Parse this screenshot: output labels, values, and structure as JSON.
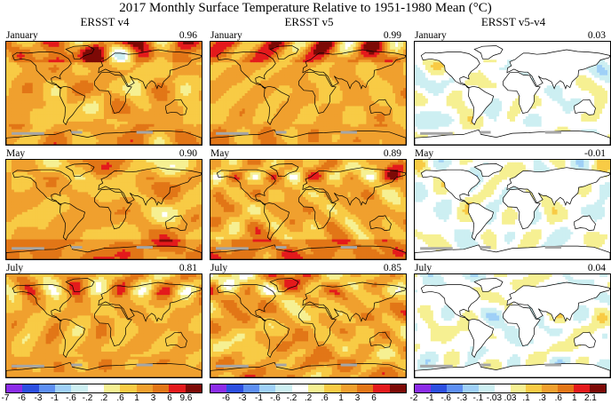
{
  "title": "2017 Monthly Surface Temperature Relative to 1951-1980 Mean (°C)",
  "columns": [
    {
      "header": "ERSST v4",
      "kind": "abs"
    },
    {
      "header": "ERSST v5",
      "kind": "abs"
    },
    {
      "header": "ERSST v5-v4",
      "kind": "diff"
    }
  ],
  "rows": [
    {
      "month": "January",
      "means": [
        "0.96",
        "0.99",
        "0.03"
      ]
    },
    {
      "month": "May",
      "means": [
        "0.90",
        "0.89",
        "-0.01"
      ]
    },
    {
      "month": "July",
      "means": [
        "0.81",
        "0.85",
        "0.04"
      ]
    }
  ],
  "colorbars": [
    {
      "ticks": [
        "-7",
        "-6",
        "-3",
        "-1",
        "-.6",
        "-.2",
        ".2",
        ".6",
        "1",
        "3",
        "6",
        "9.6"
      ],
      "colors": [
        "#8c2ce8",
        "#2c4fe0",
        "#5d8ff2",
        "#9fd0f7",
        "#cdeff2",
        "#ffffff",
        "#f6f092",
        "#f8cb45",
        "#f0a02e",
        "#e27617",
        "#e41a1c",
        "#7d0a06"
      ]
    },
    {
      "ticks": [
        "-6",
        "-3",
        "-1",
        "-.6",
        "-.2",
        ".2",
        ".6",
        "1",
        "3",
        "6"
      ],
      "colors": [
        "#8c2ce8",
        "#2c4fe0",
        "#5d8ff2",
        "#9fd0f7",
        "#cdeff2",
        "#ffffff",
        "#f6f092",
        "#f8cb45",
        "#f0a02e",
        "#e27617",
        "#e41a1c",
        "#7d0a06"
      ]
    },
    {
      "ticks": [
        "-2",
        "-1",
        "-.6",
        "-.3",
        "-.1",
        "-.03",
        ".03",
        ".1",
        ".3",
        ".6",
        "1",
        "2.1"
      ],
      "colors": [
        "#8c2ce8",
        "#2c4fe0",
        "#5d8ff2",
        "#9fd0f7",
        "#cdeff2",
        "#ffffff",
        "#f6f092",
        "#f8cb45",
        "#f0a02e",
        "#e27617",
        "#e41a1c",
        "#7d0a06"
      ]
    }
  ]
}
